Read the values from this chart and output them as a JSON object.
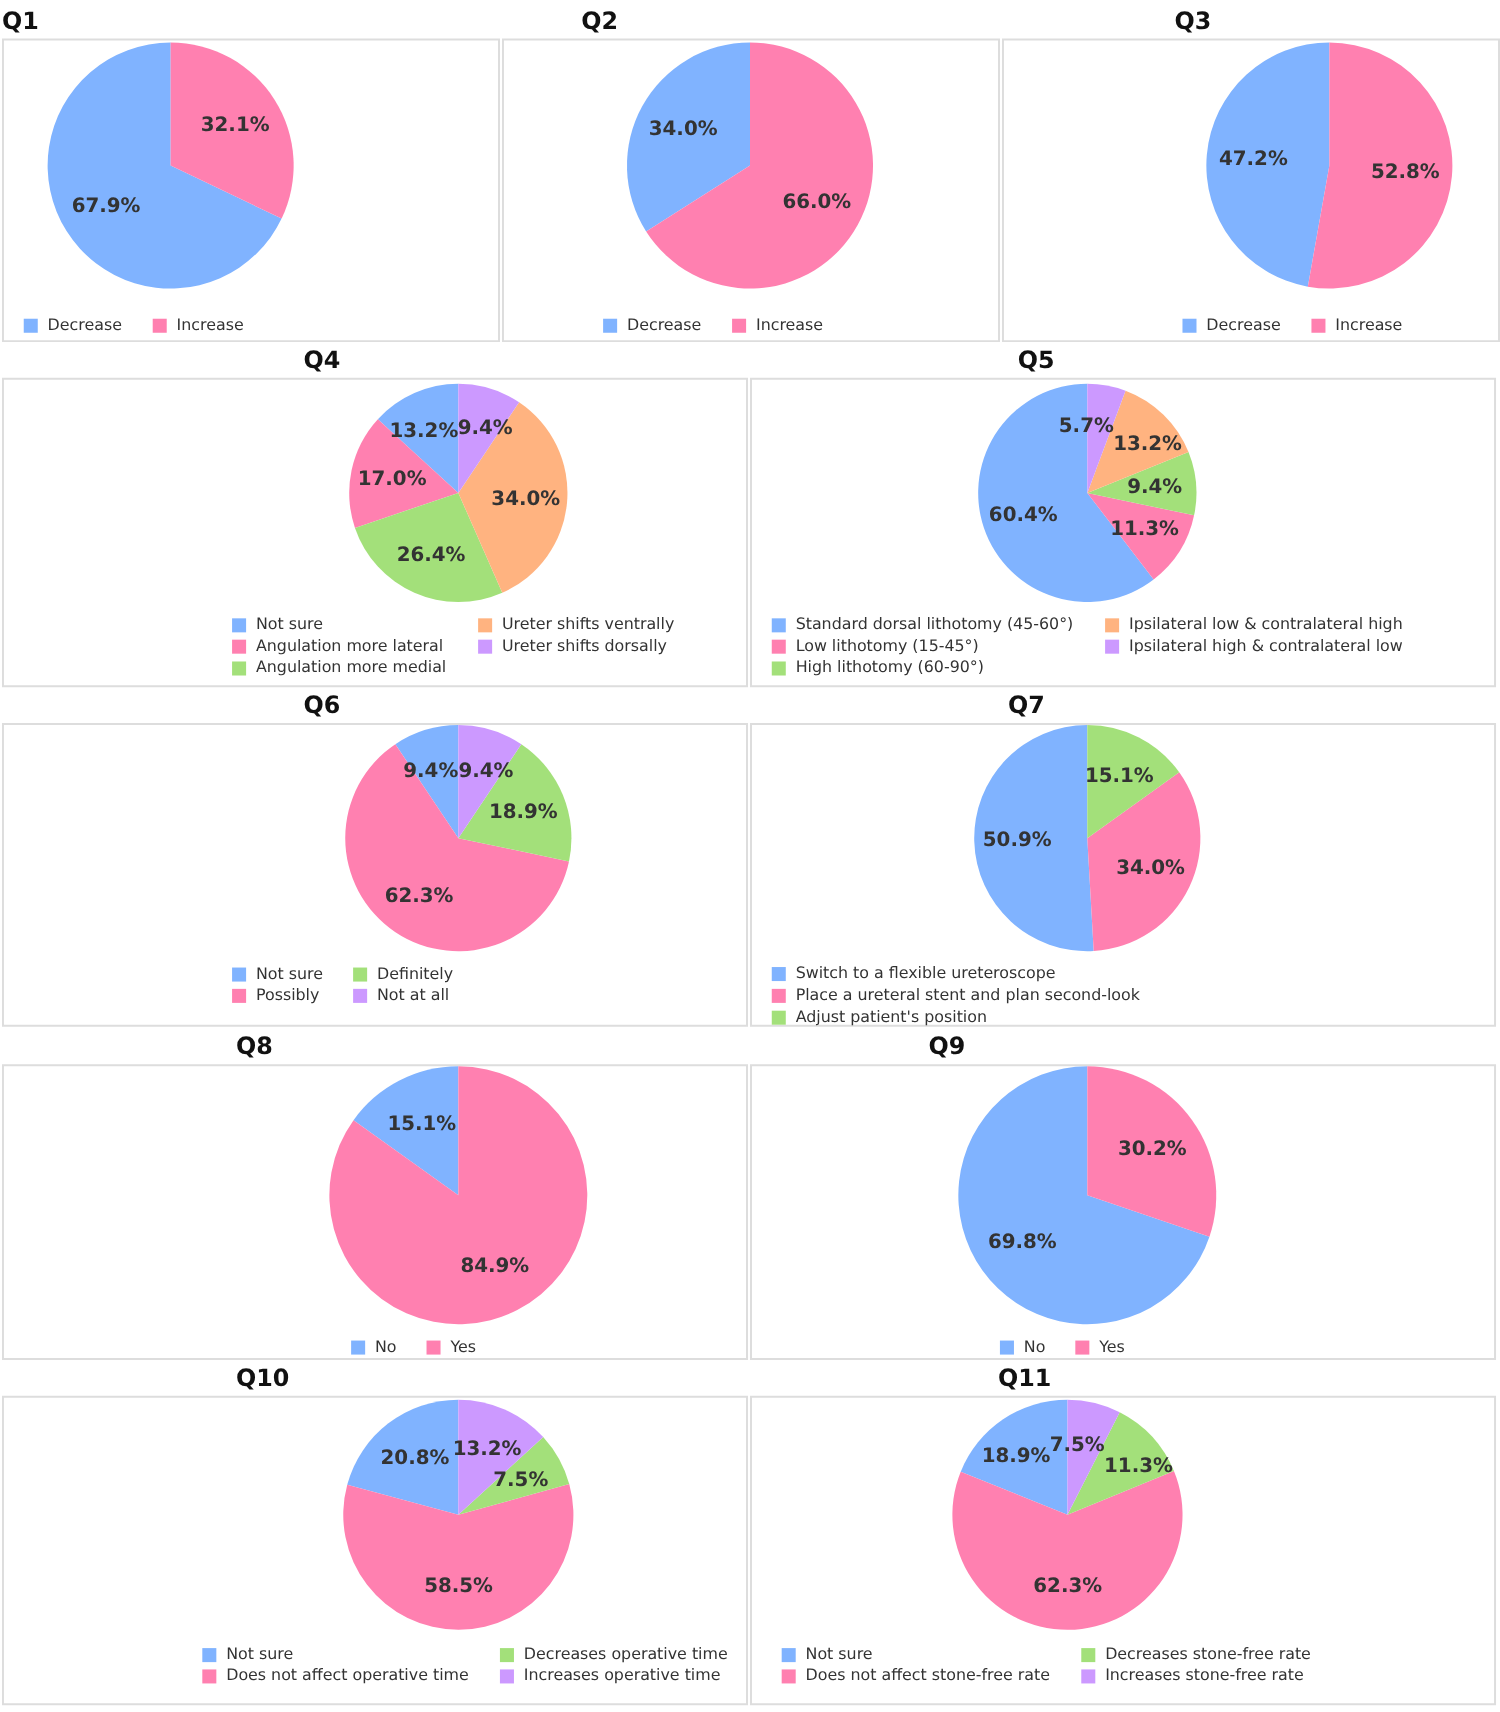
{
  "chart_data": [
    {
      "type": "pie",
      "title": "Q1",
      "categories": [
        "Decrease",
        "Increase"
      ],
      "values": [
        67.9,
        32.1
      ],
      "colors": [
        "#80b3ff",
        "#ff80b0"
      ],
      "value_labels": [
        "67.9%",
        "32.1%"
      ],
      "legend": "bottom"
    },
    {
      "type": "pie",
      "title": "Q2",
      "categories": [
        "Decrease",
        "Increase"
      ],
      "values": [
        34.0,
        66.0
      ],
      "colors": [
        "#80b3ff",
        "#ff80b0"
      ],
      "value_labels": [
        "34.0%",
        "66.0%"
      ],
      "legend": "bottom"
    },
    {
      "type": "pie",
      "title": "Q3",
      "categories": [
        "Decrease",
        "Increase"
      ],
      "values": [
        47.2,
        52.8
      ],
      "colors": [
        "#80b3ff",
        "#ff80b0"
      ],
      "value_labels": [
        "47.2%",
        "52.8%"
      ],
      "legend": "bottom"
    },
    {
      "type": "pie",
      "title": "Q4",
      "categories": [
        "Not sure",
        "Angulation more lateral",
        "Angulation more medial",
        "Ureter shifts ventrally",
        "Ureter shifts dorsally"
      ],
      "values": [
        13.2,
        17.0,
        26.4,
        34.0,
        9.4
      ],
      "colors": [
        "#80b3ff",
        "#ff80b0",
        "#a3e07a",
        "#ffb380",
        "#cc99ff"
      ],
      "value_labels": [
        "13.2%",
        "17.0%",
        "26.4%",
        "34.0%",
        "9.4%"
      ],
      "legend": "bottom"
    },
    {
      "type": "pie",
      "title": "Q5",
      "categories": [
        "Standard dorsal lithotomy (45-60°)",
        "Low lithotomy (15-45°)",
        "High lithotomy (60-90°)",
        "Ipsilateral low & contralateral high",
        "Ipsilateral high & contralateral low"
      ],
      "values": [
        60.4,
        11.3,
        9.4,
        13.2,
        5.7
      ],
      "colors": [
        "#80b3ff",
        "#ff80b0",
        "#a3e07a",
        "#ffb380",
        "#cc99ff"
      ],
      "value_labels": [
        "60.4%",
        "11.3%",
        "9.4%",
        "13.2%",
        "5.7%"
      ],
      "legend": "bottom"
    },
    {
      "type": "pie",
      "title": "Q6",
      "categories": [
        "Not sure",
        "Possibly",
        "Definitely",
        "Not at all"
      ],
      "values": [
        9.4,
        62.3,
        18.9,
        9.4
      ],
      "colors": [
        "#80b3ff",
        "#ff80b0",
        "#a3e07a",
        "#cc99ff"
      ],
      "value_labels": [
        "9.4%",
        "62.3%",
        "18.9%",
        "9.4%"
      ],
      "legend": "bottom"
    },
    {
      "type": "pie",
      "title": "Q7",
      "categories": [
        "Switch to a flexible ureteroscope",
        "Place a ureteral stent and plan second-look",
        "Adjust patient's position"
      ],
      "values": [
        50.9,
        34.0,
        15.1
      ],
      "colors": [
        "#80b3ff",
        "#ff80b0",
        "#a3e07a"
      ],
      "value_labels": [
        "50.9%",
        "34.0%",
        "15.1%"
      ],
      "legend": "bottom"
    },
    {
      "type": "pie",
      "title": "Q8",
      "categories": [
        "No",
        "Yes"
      ],
      "values": [
        15.1,
        84.9
      ],
      "colors": [
        "#80b3ff",
        "#ff80b0"
      ],
      "value_labels": [
        "15.1%",
        "84.9%"
      ],
      "legend": "bottom"
    },
    {
      "type": "pie",
      "title": "Q9",
      "categories": [
        "No",
        "Yes"
      ],
      "values": [
        69.8,
        30.2
      ],
      "colors": [
        "#80b3ff",
        "#ff80b0"
      ],
      "value_labels": [
        "69.8%",
        "30.2%"
      ],
      "legend": "bottom"
    },
    {
      "type": "pie",
      "title": "Q10",
      "categories": [
        "Not sure",
        "Does not affect operative time",
        "Decreases operative time",
        "Increases operative time"
      ],
      "values": [
        20.8,
        58.5,
        7.5,
        13.2
      ],
      "colors": [
        "#80b3ff",
        "#ff80b0",
        "#a3e07a",
        "#cc99ff"
      ],
      "value_labels": [
        "20.8%",
        "58.5%",
        "7.5%",
        "13.2%"
      ],
      "legend": "bottom"
    },
    {
      "type": "pie",
      "title": "Q11",
      "categories": [
        "Not sure",
        "Does not affect stone-free rate",
        "Decreases stone-free rate",
        "Increases stone-free rate"
      ],
      "values": [
        18.9,
        62.3,
        11.3,
        7.5
      ],
      "colors": [
        "#80b3ff",
        "#ff80b0",
        "#a3e07a",
        "#cc99ff"
      ],
      "value_labels": [
        "18.9%",
        "62.3%",
        "11.3%",
        "7.5%"
      ],
      "legend": "bottom"
    }
  ]
}
